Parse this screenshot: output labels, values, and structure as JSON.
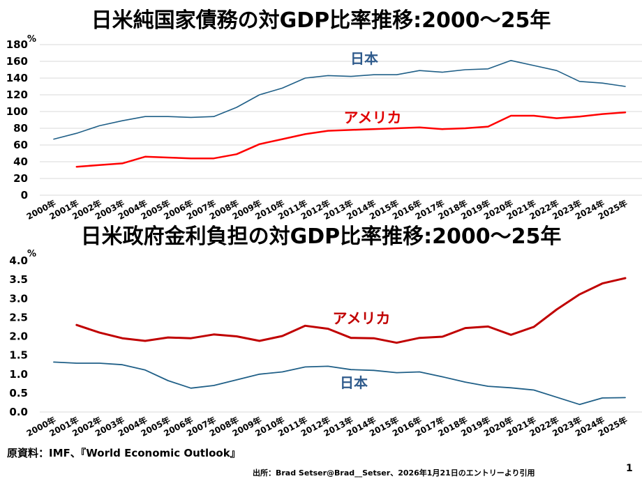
{
  "chart_data": [
    {
      "type": "line",
      "title": "日米純国家債務の対GDP比率推移:2000～25年",
      "unit": "%",
      "ylim": [
        0,
        180
      ],
      "yticks": [
        0,
        20,
        40,
        60,
        80,
        100,
        120,
        140,
        160,
        180
      ],
      "grid": true,
      "categories": [
        "2000年",
        "2001年",
        "2002年",
        "2003年",
        "2004年",
        "2005年",
        "2006年",
        "2007年",
        "2008年",
        "2009年",
        "2010年",
        "2011年",
        "2012年",
        "2013年",
        "2014年",
        "2015年",
        "2016年",
        "2017年",
        "2018年",
        "2019年",
        "2020年",
        "2021年",
        "2022年",
        "2023年",
        "2024年",
        "2025年"
      ],
      "series": [
        {
          "name": "日本",
          "color": "#1f5f87",
          "width": 1.6,
          "values": [
            67,
            74,
            83,
            89,
            94,
            94,
            93,
            94,
            105,
            120,
            128,
            140,
            143,
            142,
            144,
            144,
            149,
            147,
            150,
            151,
            161,
            155,
            149,
            136,
            134,
            130
          ]
        },
        {
          "name": "アメリカ",
          "color": "#ff0000",
          "width": 2.5,
          "values": [
            null,
            34,
            36,
            38,
            46,
            45,
            44,
            44,
            49,
            61,
            67,
            73,
            77,
            78,
            79,
            80,
            81,
            79,
            80,
            82,
            95,
            95,
            92,
            94,
            97,
            99
          ]
        }
      ]
    },
    {
      "type": "line",
      "title": "日米政府金利負担の対GDP比率推移:2000～25年",
      "unit": "%",
      "ylim": [
        0,
        4.0
      ],
      "yticks": [
        0.0,
        0.5,
        1.0,
        1.5,
        2.0,
        2.5,
        3.0,
        3.5,
        4.0
      ],
      "tick_decimals": 1,
      "grid": false,
      "categories": [
        "2000年",
        "2001年",
        "2002年",
        "2003年",
        "2004年",
        "2005年",
        "2006年",
        "2007年",
        "2008年",
        "2009年",
        "2010年",
        "2011年",
        "2012年",
        "2013年",
        "2014年",
        "2015年",
        "2016年",
        "2017年",
        "2018年",
        "2019年",
        "2020年",
        "2021年",
        "2022年",
        "2023年",
        "2024年",
        "2025年"
      ],
      "series": [
        {
          "name": "アメリカ",
          "color": "#c00000",
          "width": 3,
          "values": [
            null,
            2.3,
            2.1,
            1.95,
            1.88,
            1.97,
            1.95,
            2.05,
            2.0,
            1.88,
            2.01,
            2.28,
            2.2,
            1.96,
            1.95,
            1.83,
            1.96,
            1.99,
            2.22,
            2.26,
            2.04,
            2.25,
            2.71,
            3.11,
            3.4,
            3.54
          ]
        },
        {
          "name": "日本",
          "color": "#1f5f87",
          "width": 1.8,
          "values": [
            1.32,
            1.29,
            1.29,
            1.25,
            1.11,
            0.83,
            0.63,
            0.7,
            0.85,
            1.0,
            1.06,
            1.19,
            1.21,
            1.12,
            1.1,
            1.04,
            1.06,
            0.93,
            0.79,
            0.68,
            0.64,
            0.58,
            0.39,
            0.2,
            0.37,
            0.38
          ]
        }
      ]
    }
  ],
  "footer": {
    "source": "原資料：IMF、『World Economic Outlook』",
    "credit": "出所：Brad Setser@Brad__Setser、2026年1月21日のエントリーより引用",
    "page_number": "1"
  }
}
